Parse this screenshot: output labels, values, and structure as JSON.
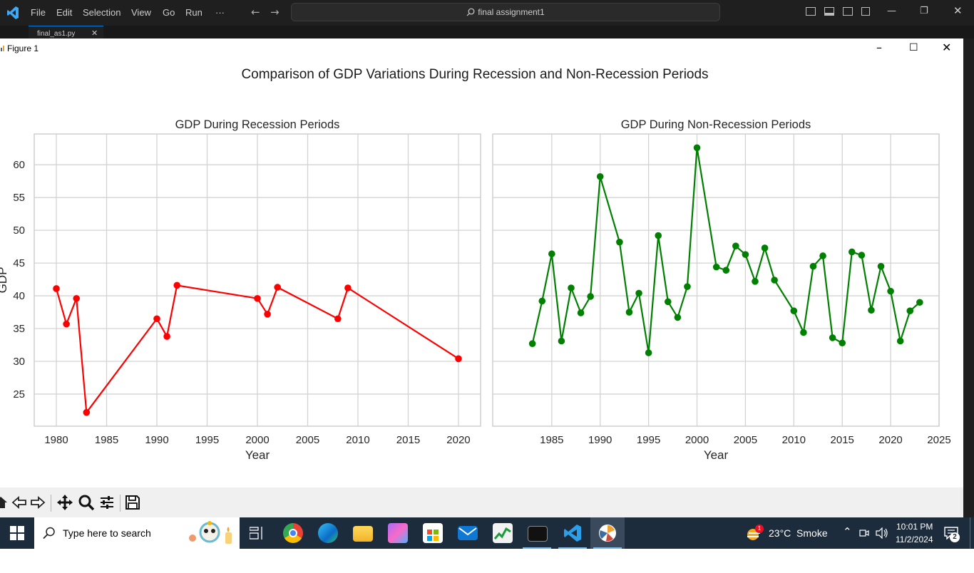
{
  "vscode": {
    "menu": [
      "File",
      "Edit",
      "Selection",
      "View",
      "Go",
      "Run",
      "···"
    ],
    "search_text": "final assignment1",
    "tab_label": "final_as1.py"
  },
  "figure_window": {
    "title": "Figure 1"
  },
  "figure": {
    "suptitle": "Comparison of GDP Variations During Recession and Non-Recession Periods"
  },
  "chart_data": [
    {
      "type": "line",
      "title": "GDP During Recession Periods",
      "xlabel": "Year",
      "ylabel": "GDP",
      "xlim": [
        1977.8,
        2022.2
      ],
      "ylim": [
        20.1,
        64.7
      ],
      "xticks": [
        1980,
        1985,
        1990,
        1995,
        2000,
        2005,
        2010,
        2015,
        2020
      ],
      "yticks": [
        25,
        30,
        35,
        40,
        45,
        50,
        55,
        60
      ],
      "grid": true,
      "color": "#ff0000",
      "marker": "o",
      "x": [
        1980,
        1981,
        1982,
        1983,
        1990,
        1991,
        1992,
        2000,
        2001,
        2002,
        2008,
        2009,
        2020
      ],
      "y": [
        41.1,
        35.7,
        39.6,
        22.2,
        36.5,
        33.8,
        41.6,
        39.6,
        37.2,
        41.3,
        36.5,
        41.2,
        30.4
      ]
    },
    {
      "type": "line",
      "title": "GDP During Non-Recession Periods",
      "xlabel": "Year",
      "ylabel": "",
      "xlim": [
        1978.9,
        2025.0
      ],
      "ylim": [
        20.1,
        64.7
      ],
      "xticks": [
        1985,
        1990,
        1995,
        2000,
        2005,
        2010,
        2015,
        2020,
        2025
      ],
      "grid": true,
      "color": "#008000",
      "marker": "o",
      "x": [
        1983,
        1984,
        1985,
        1986,
        1987,
        1988,
        1989,
        1990,
        1992,
        1993,
        1994,
        1995,
        1996,
        1997,
        1998,
        1999,
        2000,
        2002,
        2003,
        2004,
        2005,
        2006,
        2007,
        2008,
        2010,
        2011,
        2012,
        2013,
        2014,
        2015,
        2016,
        2017,
        2018,
        2019,
        2020,
        2021,
        2022,
        2023
      ],
      "y": [
        32.7,
        39.2,
        46.4,
        33.1,
        41.2,
        37.4,
        39.9,
        58.2,
        48.2,
        37.5,
        40.4,
        31.3,
        49.2,
        39.1,
        36.7,
        41.4,
        62.6,
        44.4,
        43.9,
        47.6,
        46.3,
        42.2,
        47.3,
        42.4,
        37.7,
        34.4,
        44.5,
        46.1,
        33.6,
        32.8,
        46.7,
        46.2,
        37.8,
        44.5,
        40.7,
        33.1,
        37.7,
        39.0
      ]
    }
  ],
  "taskbar": {
    "search_placeholder": "Type here to search",
    "weather_text": "23°C  Smoke",
    "weather_badge": "1",
    "time": "10:01 PM",
    "date": "11/2/2024",
    "notification_count": "2"
  }
}
